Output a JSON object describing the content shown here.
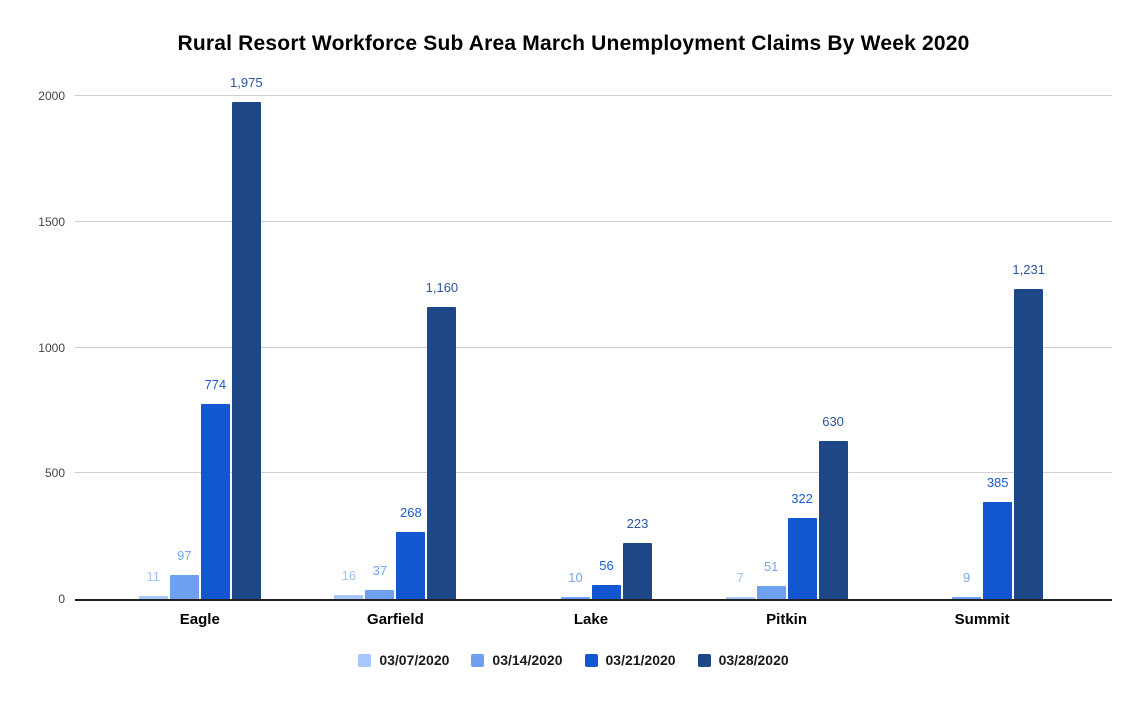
{
  "chart_data": {
    "type": "bar",
    "title": "Rural Resort Workforce Sub Area March Unemployment Claims By Week 2020",
    "categories": [
      "Eagle",
      "Garfield",
      "Lake",
      "Pitkin",
      "Summit"
    ],
    "series": [
      {
        "name": "03/07/2020",
        "color": "#a7c7fa",
        "label_color": "#a3c2f5",
        "values": [
          11,
          16,
          null,
          7,
          null
        ],
        "labels": [
          "11",
          "16",
          null,
          "7",
          null
        ]
      },
      {
        "name": "03/14/2020",
        "color": "#6f9ff0",
        "label_color": "#79a4ef",
        "values": [
          97,
          37,
          10,
          51,
          9
        ],
        "labels": [
          "97",
          "37",
          "10",
          "51",
          "9"
        ]
      },
      {
        "name": "03/21/2020",
        "color": "#1256d0",
        "label_color": "#1a5ad2",
        "values": [
          774,
          268,
          56,
          322,
          385
        ],
        "labels": [
          "774",
          "268",
          "56",
          "322",
          "385"
        ]
      },
      {
        "name": "03/28/2020",
        "color": "#1e4787",
        "label_color": "#2c549c",
        "values": [
          1975,
          1160,
          223,
          630,
          1231
        ],
        "labels": [
          "1,975",
          "1,160",
          "223",
          "630",
          "1,231"
        ]
      }
    ],
    "xlabel": "",
    "ylabel": "",
    "ylim": [
      0,
      2000
    ],
    "yticks": [
      0,
      500,
      1000,
      1500,
      2000
    ],
    "ytick_labels": [
      "0",
      "500",
      "1000",
      "1500",
      "2000"
    ],
    "grid": true,
    "legend_position": "bottom",
    "colors": {
      "background": "#ffffff",
      "gridline": "#cfcfcf",
      "baseline": "#212121",
      "axis_text": "#444444",
      "title_text": "#000000"
    }
  }
}
